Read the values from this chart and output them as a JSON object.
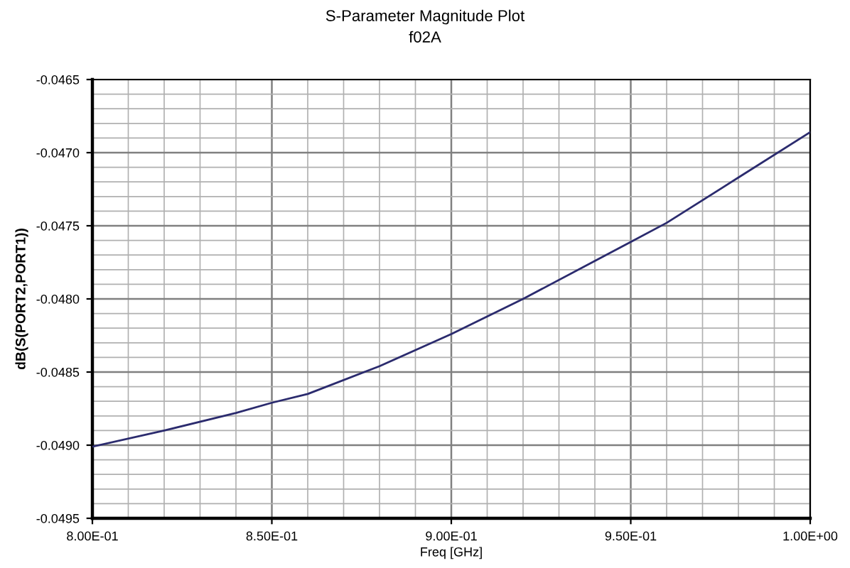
{
  "chart_data": {
    "type": "line",
    "title": "S-Parameter Magnitude Plot",
    "subtitle": "f02A",
    "xlabel": "Freq [GHz]",
    "ylabel": "dB(S(PORT2,PORT1))",
    "x": [
      0.8,
      0.82,
      0.84,
      0.85,
      0.86,
      0.88,
      0.9,
      0.92,
      0.94,
      0.95,
      0.96,
      0.98,
      1.0
    ],
    "series": [
      {
        "color": "#2b2b6e",
        "values": [
          -0.04901,
          -0.0489,
          -0.04878,
          -0.04871,
          -0.04865,
          -0.04846,
          -0.04824,
          -0.048,
          -0.04774,
          -0.04761,
          -0.04748,
          -0.04717,
          -0.04686
        ]
      }
    ],
    "xlim": [
      0.8,
      1.0
    ],
    "ylim": [
      -0.0495,
      -0.0465
    ],
    "xticks": [
      {
        "value": 0.8,
        "label": "8.00E-01"
      },
      {
        "value": 0.85,
        "label": "8.50E-01"
      },
      {
        "value": 0.9,
        "label": "9.00E-01"
      },
      {
        "value": 0.95,
        "label": "9.50E-01"
      },
      {
        "value": 1.0,
        "label": "1.00E+00"
      }
    ],
    "yticks": [
      -0.0495,
      {
        "value": -0.049,
        "label": "-0.0490"
      },
      -0.0485,
      {
        "value": -0.048,
        "label": "-0.0480"
      },
      -0.0475,
      {
        "value": -0.047,
        "label": "-0.0470"
      },
      -0.0465
    ],
    "grid": true,
    "legend": false,
    "marker": "none",
    "line_style": "solid"
  }
}
